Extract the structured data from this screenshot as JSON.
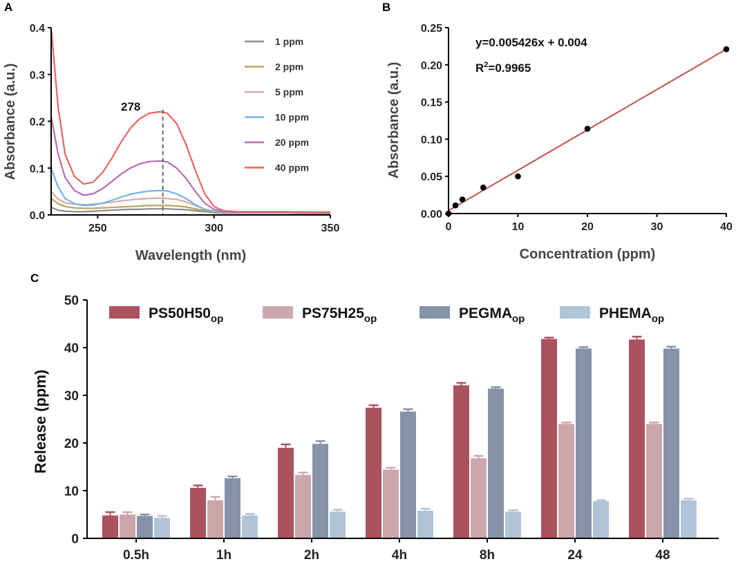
{
  "chart_data": [
    {
      "panel": "A",
      "type": "line",
      "xlabel": "Wavelength (nm)",
      "ylabel": "Absorbance (a.u.)",
      "xlim": [
        230,
        350
      ],
      "ylim": [
        0,
        0.4
      ],
      "xticks": [
        "250",
        "300",
        "350"
      ],
      "yticks": [
        "0.0",
        "0.1",
        "0.2",
        "0.3",
        "0.4"
      ],
      "annotation": "278",
      "peak_line_x": 278,
      "x": [
        230,
        233,
        236,
        240,
        244,
        248,
        252,
        256,
        260,
        264,
        268,
        272,
        276,
        278,
        280,
        284,
        288,
        292,
        296,
        300,
        304,
        310,
        320,
        330,
        340,
        350
      ],
      "series": [
        {
          "name": "1 ppm",
          "color": "#8c8c8c",
          "values": [
            0.016,
            0.01,
            0.008,
            0.007,
            0.007,
            0.008,
            0.009,
            0.01,
            0.011,
            0.012,
            0.012,
            0.013,
            0.013,
            0.013,
            0.013,
            0.012,
            0.011,
            0.009,
            0.007,
            0.005,
            0.004,
            0.004,
            0.004,
            0.004,
            0.003,
            0.003
          ]
        },
        {
          "name": "2 ppm",
          "color": "#b9a25a",
          "values": [
            0.035,
            0.024,
            0.018,
            0.015,
            0.014,
            0.014,
            0.015,
            0.016,
            0.017,
            0.018,
            0.019,
            0.02,
            0.02,
            0.02,
            0.02,
            0.019,
            0.017,
            0.013,
            0.009,
            0.006,
            0.005,
            0.005,
            0.004,
            0.004,
            0.004,
            0.004
          ]
        },
        {
          "name": "5 ppm",
          "color": "#d9aaa4",
          "values": [
            0.05,
            0.034,
            0.026,
            0.023,
            0.022,
            0.023,
            0.025,
            0.027,
            0.03,
            0.032,
            0.034,
            0.035,
            0.036,
            0.036,
            0.035,
            0.033,
            0.028,
            0.02,
            0.012,
            0.008,
            0.006,
            0.006,
            0.005,
            0.005,
            0.005,
            0.005
          ]
        },
        {
          "name": "10 ppm",
          "color": "#6fb3ef",
          "values": [
            0.1,
            0.06,
            0.035,
            0.024,
            0.02,
            0.021,
            0.025,
            0.031,
            0.038,
            0.044,
            0.048,
            0.051,
            0.052,
            0.052,
            0.051,
            0.045,
            0.035,
            0.022,
            0.012,
            0.008,
            0.006,
            0.005,
            0.005,
            0.005,
            0.005,
            0.005
          ]
        },
        {
          "name": "20 ppm",
          "color": "#b86bb0",
          "values": [
            0.21,
            0.13,
            0.08,
            0.052,
            0.042,
            0.045,
            0.056,
            0.071,
            0.087,
            0.1,
            0.109,
            0.114,
            0.115,
            0.115,
            0.113,
            0.1,
            0.078,
            0.05,
            0.025,
            0.012,
            0.008,
            0.006,
            0.006,
            0.006,
            0.006,
            0.005
          ]
        },
        {
          "name": "40 ppm",
          "color": "#ef6060",
          "values": [
            0.4,
            0.23,
            0.13,
            0.082,
            0.066,
            0.07,
            0.09,
            0.12,
            0.155,
            0.185,
            0.205,
            0.217,
            0.22,
            0.22,
            0.217,
            0.195,
            0.15,
            0.095,
            0.045,
            0.018,
            0.009,
            0.007,
            0.007,
            0.007,
            0.006,
            0.006
          ]
        }
      ]
    },
    {
      "panel": "B",
      "type": "scatter",
      "xlabel": "Concentration (ppm)",
      "ylabel": "Absorbance (a.u.)",
      "xlim": [
        0,
        40
      ],
      "ylim": [
        0,
        0.25
      ],
      "xticks": [
        "0",
        "10",
        "20",
        "30",
        "40"
      ],
      "yticks": [
        "0.00",
        "0.05",
        "0.10",
        "0.15",
        "0.20",
        "0.25"
      ],
      "equation": "y=0.005426x + 0.004",
      "r2_label": "R",
      "r2_sup": "2",
      "r2_value": "=0.9965",
      "fit": {
        "slope": 0.005426,
        "intercept": 0.004,
        "color": "#c0504d"
      },
      "x": [
        0,
        1,
        2,
        5,
        10,
        20,
        40
      ],
      "y": [
        0.0,
        0.011,
        0.019,
        0.035,
        0.05,
        0.114,
        0.221
      ]
    },
    {
      "panel": "C",
      "type": "bar",
      "xlabel": "",
      "ylabel": "Release (ppm)",
      "ylim": [
        0,
        50
      ],
      "yticks": [
        "0",
        "10",
        "20",
        "30",
        "40",
        "50"
      ],
      "categories": [
        "0.5h",
        "1h",
        "2h",
        "4h",
        "8h",
        "24",
        "48"
      ],
      "series": [
        {
          "name": "PS50H50",
          "sub": "op",
          "color": "#aa535e",
          "values": [
            4.8,
            10.6,
            19.0,
            27.4,
            32.1,
            41.8,
            41.7
          ],
          "errors": [
            0.7,
            0.5,
            0.7,
            0.5,
            0.5,
            0.3,
            0.6
          ]
        },
        {
          "name": "PS75H25",
          "sub": "op",
          "color": "#cba6aa",
          "values": [
            5.0,
            8.0,
            13.3,
            14.4,
            16.8,
            24.0,
            24.0
          ],
          "errors": [
            0.5,
            0.7,
            0.5,
            0.4,
            0.5,
            0.3,
            0.3
          ]
        },
        {
          "name": "PEGMA",
          "sub": "op",
          "color": "#8592a8",
          "values": [
            4.7,
            12.6,
            19.8,
            26.6,
            31.4,
            39.8,
            39.8
          ],
          "errors": [
            0.3,
            0.4,
            0.6,
            0.5,
            0.3,
            0.3,
            0.4
          ]
        },
        {
          "name": "PHEMA",
          "sub": "op",
          "color": "#b1c4d7",
          "values": [
            4.3,
            4.8,
            5.6,
            5.8,
            5.6,
            7.8,
            8.0
          ],
          "errors": [
            0.4,
            0.3,
            0.4,
            0.4,
            0.3,
            0.2,
            0.3
          ]
        }
      ]
    }
  ]
}
